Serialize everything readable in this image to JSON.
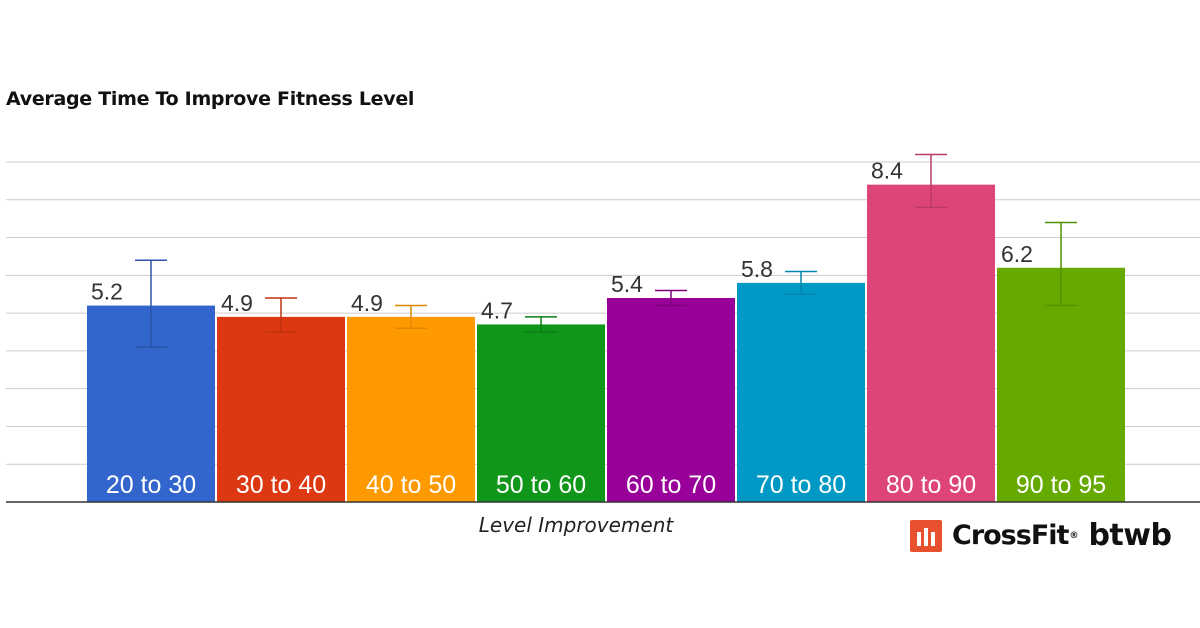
{
  "chart_data": {
    "type": "bar",
    "title": "Average Time To Improve Fitness Level",
    "xlabel": "Level Improvement",
    "ylabel": "",
    "ylim": [
      0,
      9
    ],
    "grid": true,
    "categories": [
      "20 to 30",
      "30 to 40",
      "40 to 50",
      "50 to 60",
      "60 to 70",
      "70 to 80",
      "80 to 90",
      "90 to 95"
    ],
    "values": [
      5.2,
      4.9,
      4.9,
      4.7,
      5.4,
      5.8,
      8.4,
      6.2
    ],
    "error_low": [
      4.1,
      4.5,
      4.6,
      4.5,
      5.2,
      5.5,
      7.8,
      5.2
    ],
    "error_high": [
      6.4,
      5.4,
      5.2,
      4.9,
      5.6,
      6.1,
      9.2,
      7.4
    ],
    "value_labels": [
      "5.2",
      "4.9",
      "4.9",
      "4.7",
      "5.4",
      "5.8",
      "8.4",
      "6.2"
    ],
    "colors": [
      "#3366cc",
      "#dc3912",
      "#ff9900",
      "#109618",
      "#990099",
      "#0099c6",
      "#dd4477",
      "#66aa00"
    ],
    "error_colors": [
      "#2a55a8",
      "#c0330f",
      "#e08800",
      "#0e7d14",
      "#7f007f",
      "#0085ad",
      "#bb3a65",
      "#558f00"
    ]
  },
  "logo": {
    "brand": "CrossFit",
    "registered": "®",
    "suffix": "btwb",
    "mark_color": "#e8512d"
  }
}
